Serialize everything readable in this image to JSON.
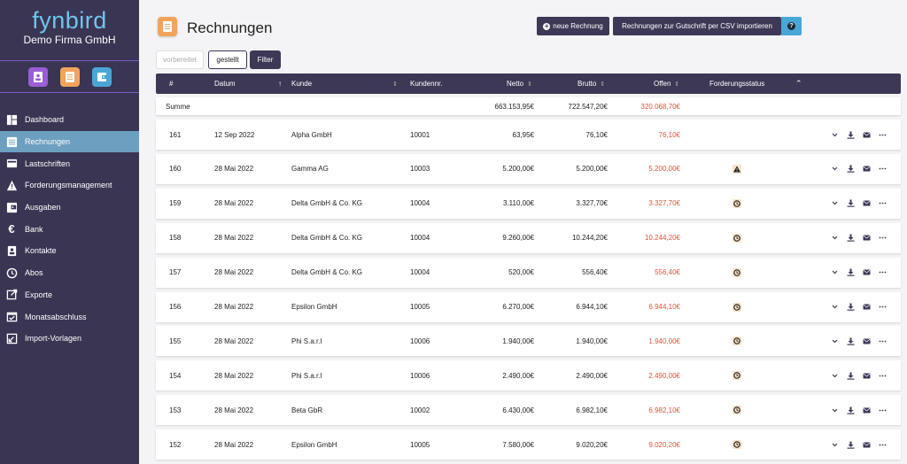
{
  "sidebar": {
    "brand": "fynbird",
    "company": "Demo Firma GmbH",
    "apps": [
      {
        "name": "contacts-app-icon",
        "color": "#9a5ed6"
      },
      {
        "name": "invoices-app-icon",
        "color": "#f2a45c"
      },
      {
        "name": "wallet-app-icon",
        "color": "#4aa6d6"
      }
    ],
    "items": [
      {
        "label": "Dashboard",
        "icon": "dashboard-icon"
      },
      {
        "label": "Rechnungen",
        "icon": "invoice-icon",
        "active": true
      },
      {
        "label": "Lastschriften",
        "icon": "card-icon"
      },
      {
        "label": "Forderungsmanagement",
        "icon": "warning-icon"
      },
      {
        "label": "Ausgaben",
        "icon": "expenses-icon"
      },
      {
        "label": "Bank",
        "icon": "euro-icon"
      },
      {
        "label": "Kontakte",
        "icon": "contacts-icon"
      },
      {
        "label": "Abos",
        "icon": "history-icon"
      },
      {
        "label": "Exporte",
        "icon": "export-icon"
      },
      {
        "label": "Monatsabschluss",
        "icon": "calendar-check-icon"
      },
      {
        "label": "Import-Vorlagen",
        "icon": "import-icon"
      }
    ]
  },
  "header": {
    "title": "Rechnungen",
    "new_invoice": "neue Rechnung",
    "csv_import": "Rechnungen zur Gutschrift per CSV importieren",
    "help": "?"
  },
  "filters": {
    "vorbereitet": "vorbereitet",
    "gestellt": "gestellt",
    "filter": "Filter"
  },
  "table": {
    "columns": {
      "nr": "#",
      "datum": "Datum",
      "kunde": "Kunde",
      "kundennr": "Kundennr.",
      "netto": "Netto",
      "brutto": "Brutto",
      "offen": "Offen",
      "status": "Forderungsstatus"
    },
    "sum": {
      "label": "Summe",
      "netto": "663.153,95€",
      "brutto": "722.547,20€",
      "offen": "320.068,70€"
    },
    "rows": [
      {
        "nr": "161",
        "datum": "12 Sep 2022",
        "kunde": "Alpha GmbH",
        "kundennr": "10001",
        "netto": "63,95€",
        "brutto": "76,10€",
        "offen": "76,10€",
        "status": "none"
      },
      {
        "nr": "160",
        "datum": "28 Mai 2022",
        "kunde": "Gamma AG",
        "kundennr": "10003",
        "netto": "5.200,00€",
        "brutto": "5.200,00€",
        "offen": "5.200,00€",
        "status": "warning"
      },
      {
        "nr": "159",
        "datum": "28 Mai 2022",
        "kunde": "Delta GmbH & Co. KG",
        "kundennr": "10004",
        "netto": "3.110,00€",
        "brutto": "3.327,70€",
        "offen": "3.327,70€",
        "status": "pending"
      },
      {
        "nr": "158",
        "datum": "28 Mai 2022",
        "kunde": "Delta GmbH & Co. KG",
        "kundennr": "10004",
        "netto": "9.260,00€",
        "brutto": "10.244,20€",
        "offen": "10.244,20€",
        "status": "pending"
      },
      {
        "nr": "157",
        "datum": "28 Mai 2022",
        "kunde": "Delta GmbH & Co. KG",
        "kundennr": "10004",
        "netto": "520,00€",
        "brutto": "556,40€",
        "offen": "556,40€",
        "status": "pending"
      },
      {
        "nr": "156",
        "datum": "28 Mai 2022",
        "kunde": "Epsilon GmbH",
        "kundennr": "10005",
        "netto": "6.270,00€",
        "brutto": "6.944,10€",
        "offen": "6.944,10€",
        "status": "pending"
      },
      {
        "nr": "155",
        "datum": "28 Mai 2022",
        "kunde": "Phi S.a.r.l",
        "kundennr": "10006",
        "netto": "1.940,00€",
        "brutto": "1.940,00€",
        "offen": "1.940,00€",
        "status": "pending"
      },
      {
        "nr": "154",
        "datum": "28 Mai 2022",
        "kunde": "Phi S.a.r.l",
        "kundennr": "10006",
        "netto": "2.490,00€",
        "brutto": "2.490,00€",
        "offen": "2.490,00€",
        "status": "pending"
      },
      {
        "nr": "153",
        "datum": "28 Mai 2022",
        "kunde": "Beta GbR",
        "kundennr": "10002",
        "netto": "6.430,00€",
        "brutto": "6.982,10€",
        "offen": "6.982,10€",
        "status": "pending"
      },
      {
        "nr": "152",
        "datum": "28 Mai 2022",
        "kunde": "Epsilon GmbH",
        "kundennr": "10005",
        "netto": "7.580,00€",
        "brutto": "9.020,20€",
        "offen": "9.020,20€",
        "status": "pending"
      }
    ]
  },
  "colors": {
    "sidebar_bg": "#3a3553",
    "active_nav": "#6c9fc0",
    "header_bg": "#3d3856",
    "brand": "#6fc6ee",
    "open_amount": "#e0533d"
  }
}
